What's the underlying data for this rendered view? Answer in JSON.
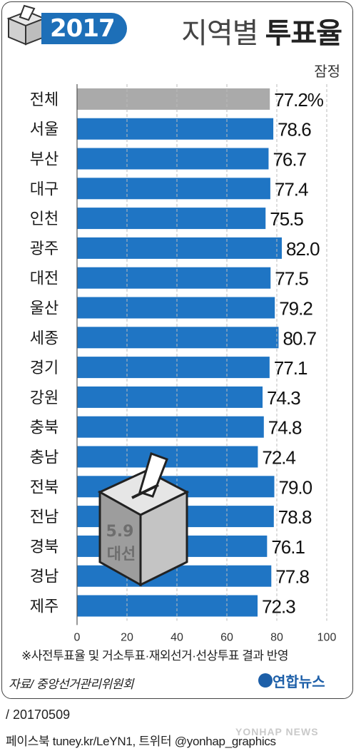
{
  "header": {
    "year_label": "2017",
    "title_prefix": "지역별",
    "title_main": "투표율",
    "subtitle": "잠정"
  },
  "chart_data": {
    "type": "bar",
    "orientation": "horizontal",
    "title": "지역별 투표율",
    "categories": [
      "전체",
      "서울",
      "부산",
      "대구",
      "인천",
      "광주",
      "대전",
      "울산",
      "세종",
      "경기",
      "강원",
      "충북",
      "충남",
      "전북",
      "전남",
      "경북",
      "경남",
      "제주"
    ],
    "values": [
      77.2,
      78.6,
      76.7,
      77.4,
      75.5,
      82.0,
      77.5,
      79.2,
      80.7,
      77.1,
      74.3,
      74.8,
      72.4,
      79.0,
      78.8,
      76.1,
      77.8,
      72.3
    ],
    "value_labels": [
      "77.2%",
      "78.6",
      "76.7",
      "77.4",
      "75.5",
      "82.0",
      "77.5",
      "79.2",
      "80.7",
      "77.1",
      "74.3",
      "74.8",
      "72.4",
      "79.0",
      "78.8",
      "76.1",
      "77.8",
      "72.3"
    ],
    "highlight_index": 0,
    "xlim": [
      0,
      100
    ],
    "x_ticks": [
      0,
      20,
      40,
      60,
      80,
      100
    ],
    "grid": true,
    "colors": {
      "bar": "#1f75c4",
      "highlight": "#aaaaaa",
      "grid": "#bbbbbb"
    }
  },
  "ballot_box": {
    "label_line1": "5.9",
    "label_line2": "대선"
  },
  "footnote": "※사전투표율 및 거소투표·재외선거·선상투표 결과 반영",
  "source": "자료/ 중앙선거관리위원회",
  "agency": "연합뉴스",
  "date": "/ 20170509",
  "social": "페이스북 tuney.kr/LeYN1, 트위터 @yonhap_graphics",
  "watermark": "YONHAP NEWS"
}
